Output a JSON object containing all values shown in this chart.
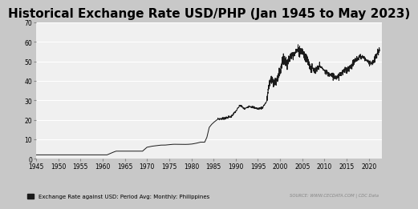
{
  "title": "Historical Exchange Rate USD/PHP (Jan 1945 to May 2023)",
  "title_fontsize": 11,
  "background_color": "#c8c8c8",
  "plot_bg_color": "#f0f0f0",
  "line_color": "#1a1a1a",
  "legend_label": "Exchange Rate against USD: Period Avg: Monthly: Philippines",
  "source_text": "SOURCE: WWW.CECDATA.COM | CDC Data",
  "ylim": [
    0,
    70
  ],
  "yticks": [
    0,
    10,
    20,
    30,
    40,
    50,
    60,
    70
  ],
  "xlim": [
    1945,
    2023
  ],
  "xticks": [
    1945,
    1950,
    1955,
    1960,
    1965,
    1970,
    1975,
    1980,
    1985,
    1990,
    1995,
    2000,
    2005,
    2010,
    2015,
    2020
  ],
  "years": [
    1945,
    1948,
    1950,
    1955,
    1960,
    1961,
    1962,
    1963,
    1964,
    1965,
    1966,
    1967,
    1968,
    1969,
    1970,
    1971,
    1972,
    1973,
    1974,
    1975,
    1976,
    1977,
    1978,
    1979,
    1980,
    1981,
    1982,
    1983.0,
    1983.5,
    1984.0,
    1984.5,
    1985,
    1986,
    1987,
    1988,
    1989,
    1990,
    1991,
    1992,
    1993,
    1994,
    1995,
    1996,
    1997,
    1997.5,
    1998,
    1998.5,
    1999,
    2000,
    2000.5,
    2001,
    2001.5,
    2002,
    2003,
    2004,
    2004.5,
    2005,
    2005.5,
    2006,
    2006.5,
    2007,
    2008,
    2009,
    2010,
    2011,
    2012,
    2013,
    2014,
    2015,
    2016,
    2017,
    2018,
    2019,
    2020,
    2021,
    2022,
    2022.4
  ],
  "rates": [
    2.0,
    2.0,
    2.0,
    2.0,
    2.0,
    2.0,
    3.0,
    3.9,
    3.9,
    3.9,
    3.9,
    3.9,
    3.9,
    3.9,
    5.9,
    6.4,
    6.7,
    7.0,
    7.0,
    7.25,
    7.44,
    7.4,
    7.37,
    7.38,
    7.51,
    7.9,
    8.5,
    8.5,
    11.0,
    16.0,
    17.5,
    18.6,
    20.4,
    20.6,
    21.1,
    21.7,
    24.3,
    27.5,
    25.5,
    27.1,
    26.4,
    25.7,
    26.2,
    29.5,
    38.0,
    40.9,
    39.5,
    39.1,
    44.2,
    50.0,
    51.6,
    49.0,
    51.2,
    54.2,
    56.0,
    55.5,
    55.1,
    53.0,
    51.3,
    49.0,
    46.2,
    44.5,
    47.7,
    45.1,
    43.3,
    42.2,
    42.4,
    44.4,
    45.5,
    47.5,
    50.4,
    52.7,
    51.8,
    49.6,
    49.2,
    54.5,
    56.0
  ]
}
